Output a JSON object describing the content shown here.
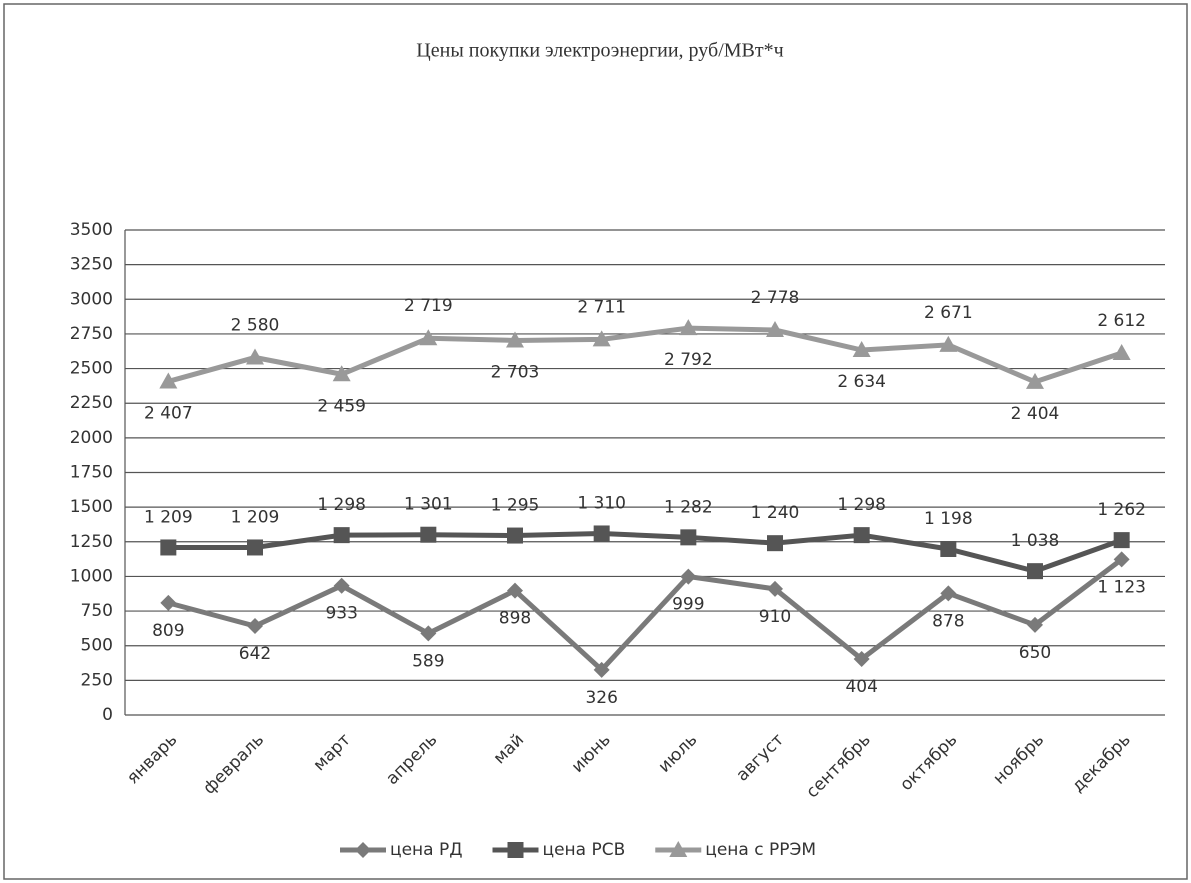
{
  "chart_data": {
    "type": "line",
    "title": "Цены покупки электроэнергии, руб/МВт*ч",
    "categories": [
      "январь",
      "февраль",
      "март",
      "апрель",
      "май",
      "июнь",
      "июль",
      "август",
      "сентябрь",
      "октябрь",
      "ноябрь",
      "декабрь"
    ],
    "series": [
      {
        "name": "цена РД",
        "color": "#7a7a7a",
        "marker": "diamond",
        "values": [
          809,
          642,
          933,
          589,
          898,
          326,
          999,
          910,
          404,
          878,
          650,
          1123
        ],
        "value_labels": [
          "809",
          "642",
          "933",
          "589",
          "898",
          "326",
          "999",
          "910",
          "404",
          "878",
          "650",
          "1 123"
        ]
      },
      {
        "name": "цена РСВ",
        "color": "#555555",
        "marker": "square",
        "values": [
          1209,
          1209,
          1298,
          1301,
          1295,
          1310,
          1282,
          1240,
          1298,
          1198,
          1038,
          1262
        ],
        "value_labels": [
          "1 209",
          "1 209",
          "1 298",
          "1 301",
          "1 295",
          "1 310",
          "1 282",
          "1 240",
          "1 298",
          "1 198",
          "1 038",
          "1 262"
        ]
      },
      {
        "name": "цена с РРЭМ",
        "color": "#999999",
        "marker": "triangle",
        "values": [
          2407,
          2580,
          2459,
          2719,
          2703,
          2711,
          2792,
          2778,
          2634,
          2671,
          2404,
          2612
        ],
        "value_labels": [
          "2 407",
          "2 580",
          "2 459",
          "2 719",
          "2 703",
          "2 711",
          "2 792",
          "2 778",
          "2 634",
          "2 671",
          "2 404",
          "2 612"
        ]
      }
    ],
    "ylim": [
      0,
      3500
    ],
    "yticks": [
      0,
      250,
      500,
      750,
      1000,
      1250,
      1500,
      1750,
      2000,
      2250,
      2500,
      2750,
      3000,
      3250,
      3500
    ],
    "grid": true,
    "legend": "bottom"
  }
}
